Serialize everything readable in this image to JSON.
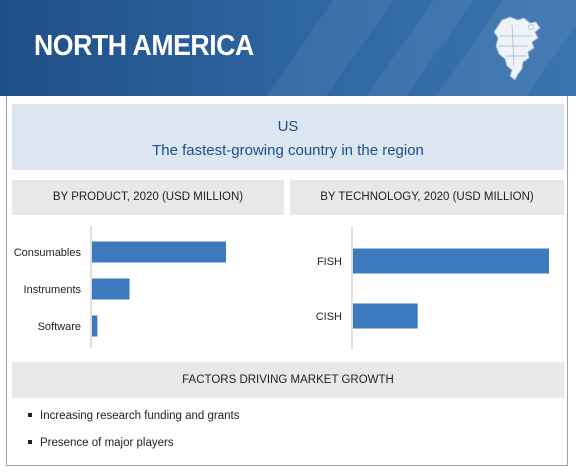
{
  "header": {
    "title": "NORTH AMERICA"
  },
  "highlight": {
    "country": "US",
    "subtitle": "The fastest-growing country in the region"
  },
  "colors": {
    "header_blue": "#2e67a4",
    "bar_blue": "#3c79bd",
    "highlight_bg": "#dce6f1",
    "panel_gray": "#e7e8ea"
  },
  "product_panel": {
    "title": "BY PRODUCT,  2020 (USD MILLION)"
  },
  "technology_panel": {
    "title": "BY TECHNOLOGY,  2020 (USD MILLION)"
  },
  "chart_data": [
    {
      "type": "bar",
      "orientation": "horizontal",
      "title": "BY PRODUCT,  2020 (USD MILLION)",
      "categories": [
        "Consumables",
        "Instruments",
        "Software"
      ],
      "values": [
        100,
        28,
        4
      ],
      "value_scale": "relative (no axis values shown)",
      "grid": false,
      "legend": "none"
    },
    {
      "type": "bar",
      "orientation": "horizontal",
      "title": "BY TECHNOLOGY,  2020 (USD MILLION)",
      "categories": [
        "FISH",
        "CISH"
      ],
      "values": [
        100,
        33
      ],
      "value_scale": "relative (no axis values shown)",
      "grid": false,
      "legend": "none"
    }
  ],
  "factors": {
    "title": "FACTORS DRIVING  MARKET GROWTH",
    "items": [
      "Increasing research funding and grants",
      "Presence of major players"
    ]
  }
}
